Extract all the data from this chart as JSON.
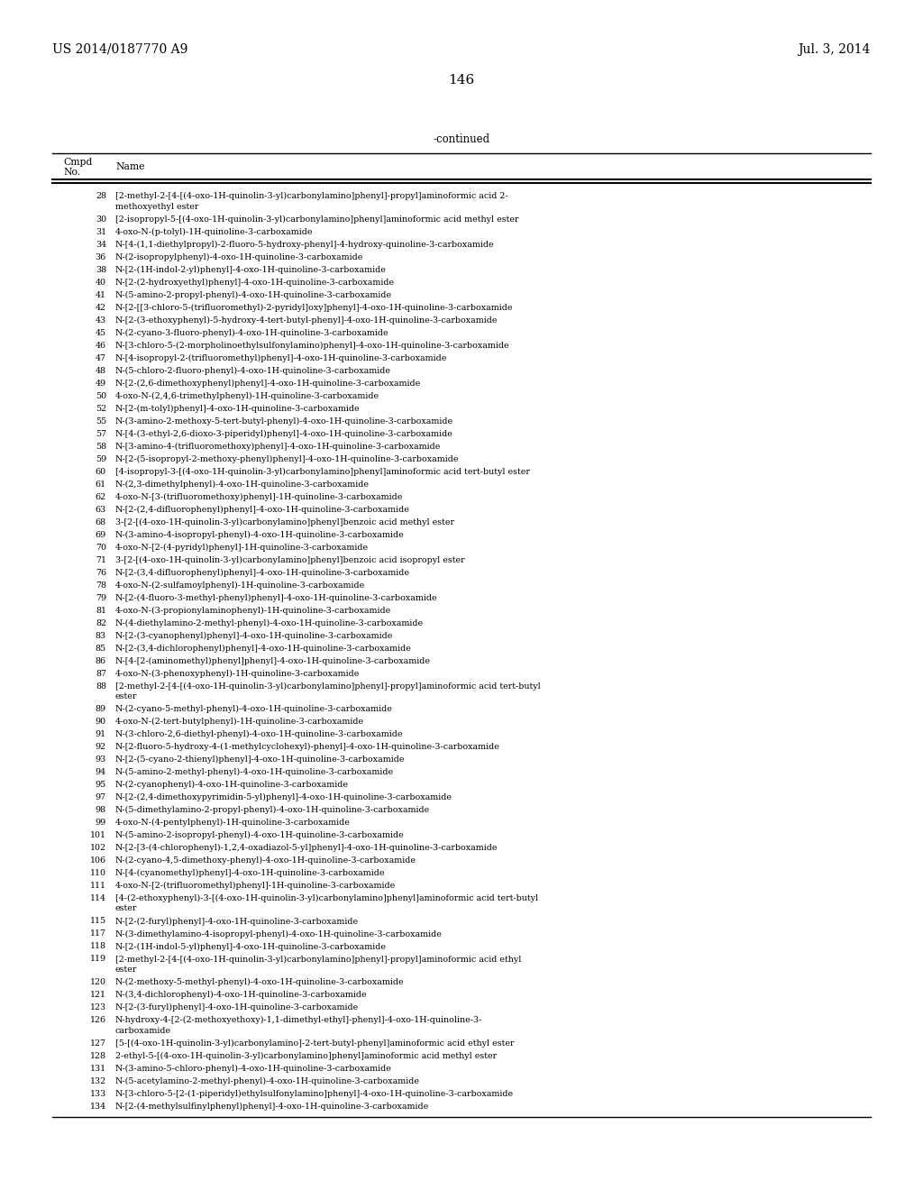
{
  "header_left": "US 2014/0187770 A9",
  "header_right": "Jul. 3, 2014",
  "page_number": "146",
  "continued_label": "-continued",
  "bg_color": "#ffffff",
  "text_color": "#000000",
  "font_size": 6.8,
  "header_font_size": 10,
  "table_font_size": 7.5,
  "entries": [
    [
      "28",
      "[2-methyl-2-[4-[(4-oxo-1H-quinolin-3-yl)carbonylamino]phenyl]-propyl]aminoformic acid 2-\nmethoxyethyl ester"
    ],
    [
      "30",
      "[2-isopropyl-5-[(4-oxo-1H-quinolin-3-yl)carbonylamino]phenyl]aminoformic acid methyl ester"
    ],
    [
      "31",
      "4-oxo-N-(p-tolyl)-1H-quinoline-3-carboxamide"
    ],
    [
      "34",
      "N-[4-(1,1-diethylpropyl)-2-fluoro-5-hydroxy-phenyl]-4-hydroxy-quinoline-3-carboxamide"
    ],
    [
      "36",
      "N-(2-isopropylphenyl)-4-oxo-1H-quinoline-3-carboxamide"
    ],
    [
      "38",
      "N-[2-(1H-indol-2-yl)phenyl]-4-oxo-1H-quinoline-3-carboxamide"
    ],
    [
      "40",
      "N-[2-(2-hydroxyethyl)phenyl]-4-oxo-1H-quinoline-3-carboxamide"
    ],
    [
      "41",
      "N-(5-amino-2-propyl-phenyl)-4-oxo-1H-quinoline-3-carboxamide"
    ],
    [
      "42",
      "N-[2-[[3-chloro-5-(trifluoromethyl)-2-pyridyl]oxy]phenyl]-4-oxo-1H-quinoline-3-carboxamide"
    ],
    [
      "43",
      "N-[2-(3-ethoxyphenyl)-5-hydroxy-4-tert-butyl-phenyl]-4-oxo-1H-quinoline-3-carboxamide"
    ],
    [
      "45",
      "N-(2-cyano-3-fluoro-phenyl)-4-oxo-1H-quinoline-3-carboxamide"
    ],
    [
      "46",
      "N-[3-chloro-5-(2-morpholinoethylsulfonylamino)phenyl]-4-oxo-1H-quinoline-3-carboxamide"
    ],
    [
      "47",
      "N-[4-isopropyl-2-(trifluoromethyl)phenyl]-4-oxo-1H-quinoline-3-carboxamide"
    ],
    [
      "48",
      "N-(5-chloro-2-fluoro-phenyl)-4-oxo-1H-quinoline-3-carboxamide"
    ],
    [
      "49",
      "N-[2-(2,6-dimethoxyphenyl)phenyl]-4-oxo-1H-quinoline-3-carboxamide"
    ],
    [
      "50",
      "4-oxo-N-(2,4,6-trimethylphenyl)-1H-quinoline-3-carboxamide"
    ],
    [
      "52",
      "N-[2-(m-tolyl)phenyl]-4-oxo-1H-quinoline-3-carboxamide"
    ],
    [
      "55",
      "N-(3-amino-2-methoxy-5-tert-butyl-phenyl)-4-oxo-1H-quinoline-3-carboxamide"
    ],
    [
      "57",
      "N-[4-(3-ethyl-2,6-dioxo-3-piperidyl)phenyl]-4-oxo-1H-quinoline-3-carboxamide"
    ],
    [
      "58",
      "N-[3-amino-4-(trifluoromethoxy)phenyl]-4-oxo-1H-quinoline-3-carboxamide"
    ],
    [
      "59",
      "N-[2-(5-isopropyl-2-methoxy-phenyl)phenyl]-4-oxo-1H-quinoline-3-carboxamide"
    ],
    [
      "60",
      "[4-isopropyl-3-[(4-oxo-1H-quinolin-3-yl)carbonylamino]phenyl]aminoformic acid tert-butyl ester"
    ],
    [
      "61",
      "N-(2,3-dimethylphenyl)-4-oxo-1H-quinoline-3-carboxamide"
    ],
    [
      "62",
      "4-oxo-N-[3-(trifluoromethoxy)phenyl]-1H-quinoline-3-carboxamide"
    ],
    [
      "63",
      "N-[2-(2,4-difluorophenyl)phenyl]-4-oxo-1H-quinoline-3-carboxamide"
    ],
    [
      "68",
      "3-[2-[(4-oxo-1H-quinolin-3-yl)carbonylamino]phenyl]benzoic acid methyl ester"
    ],
    [
      "69",
      "N-(3-amino-4-isopropyl-phenyl)-4-oxo-1H-quinoline-3-carboxamide"
    ],
    [
      "70",
      "4-oxo-N-[2-(4-pyridyl)phenyl]-1H-quinoline-3-carboxamide"
    ],
    [
      "71",
      "3-[2-[(4-oxo-1H-quinolin-3-yl)carbonylamino]phenyl]benzoic acid isopropyl ester"
    ],
    [
      "76",
      "N-[2-(3,4-difluorophenyl)phenyl]-4-oxo-1H-quinoline-3-carboxamide"
    ],
    [
      "78",
      "4-oxo-N-(2-sulfamoylphenyl)-1H-quinoline-3-carboxamide"
    ],
    [
      "79",
      "N-[2-(4-fluoro-3-methyl-phenyl)phenyl]-4-oxo-1H-quinoline-3-carboxamide"
    ],
    [
      "81",
      "4-oxo-N-(3-propionylaminophenyl)-1H-quinoline-3-carboxamide"
    ],
    [
      "82",
      "N-(4-diethylamino-2-methyl-phenyl)-4-oxo-1H-quinoline-3-carboxamide"
    ],
    [
      "83",
      "N-[2-(3-cyanophenyl)phenyl]-4-oxo-1H-quinoline-3-carboxamide"
    ],
    [
      "85",
      "N-[2-(3,4-dichlorophenyl)phenyl]-4-oxo-1H-quinoline-3-carboxamide"
    ],
    [
      "86",
      "N-[4-[2-(aminomethyl)phenyl]phenyl]-4-oxo-1H-quinoline-3-carboxamide"
    ],
    [
      "87",
      "4-oxo-N-(3-phenoxyphenyl)-1H-quinoline-3-carboxamide"
    ],
    [
      "88",
      "[2-methyl-2-[4-[(4-oxo-1H-quinolin-3-yl)carbonylamino]phenyl]-propyl]aminoformic acid tert-butyl\nester"
    ],
    [
      "89",
      "N-(2-cyano-5-methyl-phenyl)-4-oxo-1H-quinoline-3-carboxamide"
    ],
    [
      "90",
      "4-oxo-N-(2-tert-butylphenyl)-1H-quinoline-3-carboxamide"
    ],
    [
      "91",
      "N-(3-chloro-2,6-diethyl-phenyl)-4-oxo-1H-quinoline-3-carboxamide"
    ],
    [
      "92",
      "N-[2-fluoro-5-hydroxy-4-(1-methylcyclohexyl)-phenyl]-4-oxo-1H-quinoline-3-carboxamide"
    ],
    [
      "93",
      "N-[2-(5-cyano-2-thienyl)phenyl]-4-oxo-1H-quinoline-3-carboxamide"
    ],
    [
      "94",
      "N-(5-amino-2-methyl-phenyl)-4-oxo-1H-quinoline-3-carboxamide"
    ],
    [
      "95",
      "N-(2-cyanophenyl)-4-oxo-1H-quinoline-3-carboxamide"
    ],
    [
      "97",
      "N-[2-(2,4-dimethoxypyrimidin-5-yl)phenyl]-4-oxo-1H-quinoline-3-carboxamide"
    ],
    [
      "98",
      "N-(5-dimethylamino-2-propyl-phenyl)-4-oxo-1H-quinoline-3-carboxamide"
    ],
    [
      "99",
      "4-oxo-N-(4-pentylphenyl)-1H-quinoline-3-carboxamide"
    ],
    [
      "101",
      "N-(5-amino-2-isopropyl-phenyl)-4-oxo-1H-quinoline-3-carboxamide"
    ],
    [
      "102",
      "N-[2-[3-(4-chlorophenyl)-1,2,4-oxadiazol-5-yl]phenyl]-4-oxo-1H-quinoline-3-carboxamide"
    ],
    [
      "106",
      "N-(2-cyano-4,5-dimethoxy-phenyl)-4-oxo-1H-quinoline-3-carboxamide"
    ],
    [
      "110",
      "N-[4-(cyanomethyl)phenyl]-4-oxo-1H-quinoline-3-carboxamide"
    ],
    [
      "111",
      "4-oxo-N-[2-(trifluoromethyl)phenyl]-1H-quinoline-3-carboxamide"
    ],
    [
      "114",
      "[4-(2-ethoxyphenyl)-3-[(4-oxo-1H-quinolin-3-yl)carbonylamino]phenyl]aminoformic acid tert-butyl\nester"
    ],
    [
      "115",
      "N-[2-(2-furyl)phenyl]-4-oxo-1H-quinoline-3-carboxamide"
    ],
    [
      "117",
      "N-(3-dimethylamino-4-isopropyl-phenyl)-4-oxo-1H-quinoline-3-carboxamide"
    ],
    [
      "118",
      "N-[2-(1H-indol-5-yl)phenyl]-4-oxo-1H-quinoline-3-carboxamide"
    ],
    [
      "119",
      "[2-methyl-2-[4-[(4-oxo-1H-quinolin-3-yl)carbonylamino]phenyl]-propyl]aminoformic acid ethyl\nester"
    ],
    [
      "120",
      "N-(2-methoxy-5-methyl-phenyl)-4-oxo-1H-quinoline-3-carboxamide"
    ],
    [
      "121",
      "N-(3,4-dichlorophenyl)-4-oxo-1H-quinoline-3-carboxamide"
    ],
    [
      "123",
      "N-[2-(3-furyl)phenyl]-4-oxo-1H-quinoline-3-carboxamide"
    ],
    [
      "126",
      "N-hydroxy-4-[2-(2-methoxyethoxy)-1,1-dimethyl-ethyl]-phenyl]-4-oxo-1H-quinoline-3-\ncarboxamide"
    ],
    [
      "127",
      "[5-[(4-oxo-1H-quinolin-3-yl)carbonylamino]-2-tert-butyl-phenyl]aminoformic acid ethyl ester"
    ],
    [
      "128",
      "2-ethyl-5-[(4-oxo-1H-quinolin-3-yl)carbonylamino]phenyl]aminoformic acid methyl ester"
    ],
    [
      "131",
      "N-(3-amino-5-chloro-phenyl)-4-oxo-1H-quinoline-3-carboxamide"
    ],
    [
      "132",
      "N-(5-acetylamino-2-methyl-phenyl)-4-oxo-1H-quinoline-3-carboxamide"
    ],
    [
      "133",
      "N-[3-chloro-5-[2-(1-piperidyl)ethylsulfonylamino]phenyl]-4-oxo-1H-quinoline-3-carboxamide"
    ],
    [
      "134",
      "N-[2-(4-methylsulfinylphenyl)phenyl]-4-oxo-1H-quinoline-3-carboxamide"
    ]
  ]
}
